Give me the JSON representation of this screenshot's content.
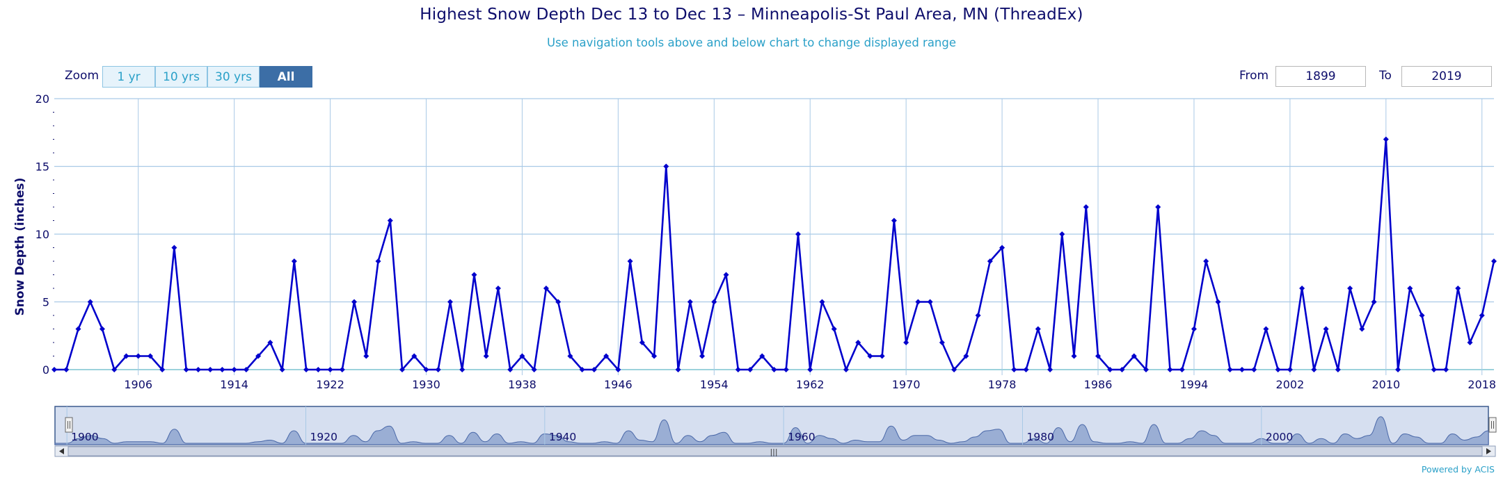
{
  "header": {
    "title": "Highest Snow Depth Dec 13 to Dec 13 – Minneapolis-St Paul Area, MN (ThreadEx)",
    "subtitle": "Use navigation tools above and below chart to change displayed range"
  },
  "zoom": {
    "label": "Zoom",
    "buttons": [
      "1 yr",
      "10 yrs",
      "30 yrs",
      "All"
    ],
    "active": "All"
  },
  "range": {
    "from_label": "From",
    "from_value": "1899",
    "to_label": "To",
    "to_value": "2019"
  },
  "footer": {
    "powered": "Powered by ACIS"
  },
  "colors": {
    "series": "#0000cc",
    "grid": "#a9c9e6",
    "navigator_fill": "#9aaed4",
    "navigator_mask": "#d6dff0",
    "text": "#0d0d6b",
    "accent": "#2aa0c8"
  },
  "chart_data": {
    "type": "line",
    "title": "Highest Snow Depth Dec 13 to Dec 13 – Minneapolis-St Paul Area, MN (ThreadEx)",
    "ylabel": "Snow Depth (inches)",
    "xlabel": "",
    "ylim": [
      0,
      20
    ],
    "xlim": [
      1899,
      2019
    ],
    "y_ticks": [
      0,
      5,
      10,
      15,
      20
    ],
    "x_ticks": [
      1906,
      1914,
      1922,
      1930,
      1938,
      1946,
      1954,
      1962,
      1970,
      1978,
      1986,
      1994,
      2002,
      2010,
      2018
    ],
    "navigator_ticks": [
      1900,
      1920,
      1940,
      1960,
      1980,
      2000
    ],
    "grid": true,
    "legend": "none",
    "series": [
      {
        "x": [
          1899,
          1900,
          1901,
          1902,
          1903,
          1904,
          1905,
          1906,
          1907,
          1908,
          1909,
          1910,
          1911,
          1912,
          1913,
          1914,
          1915,
          1916,
          1917,
          1918,
          1919,
          1920,
          1921,
          1922,
          1923,
          1924,
          1925,
          1926,
          1927,
          1928,
          1929,
          1930,
          1931,
          1932,
          1933,
          1934,
          1935,
          1936,
          1937,
          1938,
          1939,
          1940,
          1941,
          1942,
          1943,
          1944,
          1945,
          1946,
          1947,
          1948,
          1949,
          1950,
          1951,
          1952,
          1953,
          1954,
          1955,
          1956,
          1957,
          1958,
          1959,
          1960,
          1961,
          1962,
          1963,
          1964,
          1965,
          1966,
          1967,
          1968,
          1969,
          1970,
          1971,
          1972,
          1973,
          1974,
          1975,
          1976,
          1977,
          1978,
          1979,
          1980,
          1981,
          1982,
          1983,
          1984,
          1985,
          1986,
          1987,
          1988,
          1989,
          1990,
          1991,
          1992,
          1993,
          1994,
          1995,
          1996,
          1997,
          1998,
          1999,
          2000,
          2001,
          2002,
          2003,
          2004,
          2005,
          2006,
          2007,
          2008,
          2009,
          2010,
          2011,
          2012,
          2013,
          2014,
          2015,
          2016,
          2017,
          2018,
          2019
        ],
        "values": [
          0,
          0,
          3,
          5,
          3,
          0,
          1,
          1,
          1,
          0,
          9,
          0,
          0,
          0,
          0,
          0,
          0,
          1,
          2,
          0,
          8,
          0,
          0,
          0,
          0,
          5,
          1,
          8,
          11,
          0,
          1,
          0,
          0,
          5,
          0,
          7,
          1,
          6,
          0,
          1,
          0,
          6,
          5,
          1,
          0,
          0,
          1,
          0,
          8,
          2,
          1,
          15,
          0,
          5,
          1,
          5,
          7,
          0,
          0,
          1,
          0,
          0,
          10,
          0,
          5,
          3,
          0,
          2,
          1,
          1,
          11,
          2,
          5,
          5,
          2,
          0,
          1,
          4,
          8,
          9,
          0,
          0,
          3,
          0,
          10,
          1,
          12,
          1,
          0,
          0,
          1,
          0,
          12,
          0,
          0,
          3,
          8,
          5,
          0,
          0,
          0,
          3,
          0,
          0,
          6,
          0,
          3,
          0,
          6,
          3,
          5,
          17,
          0,
          6,
          4,
          0,
          0,
          6,
          2,
          4,
          8
        ]
      }
    ]
  }
}
